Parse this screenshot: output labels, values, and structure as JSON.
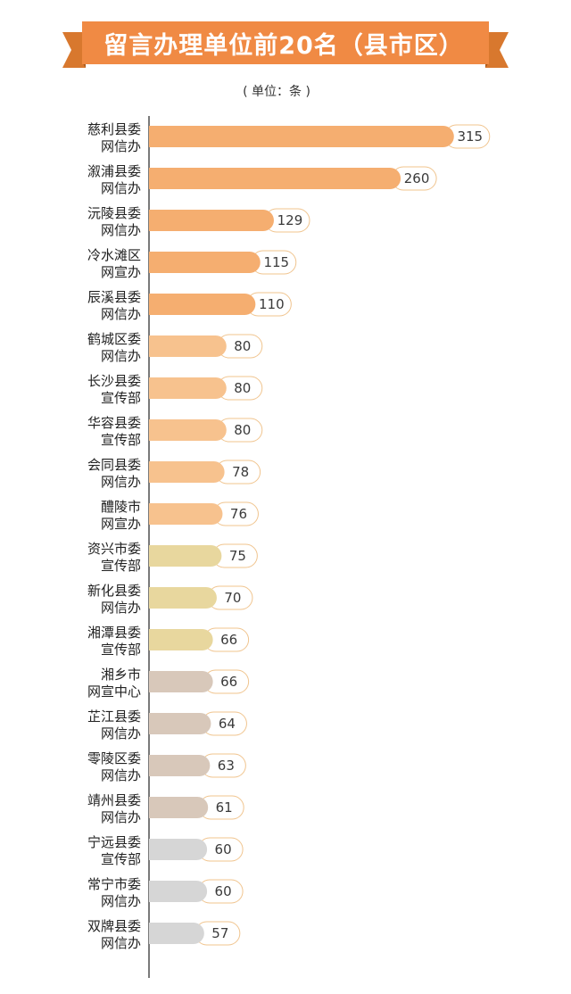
{
  "header": {
    "title": "留言办理单位前20名（县市区）",
    "unit": "( 单位：条 )"
  },
  "colors": {
    "banner": "#f08a44",
    "banner_ribbon": "#d8782e",
    "banner_ribbon_dark": "#a85a1e",
    "bar_palette": [
      "#f5ae70",
      "#f7c28e",
      "#e8d79e",
      "#d8c8ba",
      "#d6d6d6"
    ],
    "axis": "#333333",
    "label_outline": "#f0c48e"
  },
  "chart_data": {
    "type": "bar",
    "orientation": "horizontal",
    "title": "留言办理单位前20名（县市区）",
    "unit": "条",
    "categories": [
      [
        "慈利县委",
        "网信办"
      ],
      [
        "溆浦县委",
        "网信办"
      ],
      [
        "沅陵县委",
        "网信办"
      ],
      [
        "冷水滩区",
        "网宣办"
      ],
      [
        "辰溪县委",
        "网信办"
      ],
      [
        "鹤城区委",
        "网信办"
      ],
      [
        "长沙县委",
        "宣传部"
      ],
      [
        "华容县委",
        "宣传部"
      ],
      [
        "会同县委",
        "网信办"
      ],
      [
        "醴陵市",
        "网宣办"
      ],
      [
        "资兴市委",
        "宣传部"
      ],
      [
        "新化县委",
        "网信办"
      ],
      [
        "湘潭县委",
        "宣传部"
      ],
      [
        "湘乡市",
        "网宣中心"
      ],
      [
        "芷江县委",
        "网信办"
      ],
      [
        "零陵区委",
        "网信办"
      ],
      [
        "靖州县委",
        "网信办"
      ],
      [
        "宁远县委",
        "宣传部"
      ],
      [
        "常宁市委",
        "网信办"
      ],
      [
        "双牌县委",
        "网信办"
      ]
    ],
    "values": [
      315,
      260,
      129,
      115,
      110,
      80,
      80,
      80,
      78,
      76,
      75,
      70,
      66,
      66,
      64,
      63,
      61,
      60,
      60,
      57
    ],
    "color_groups": [
      0,
      0,
      0,
      0,
      0,
      1,
      1,
      1,
      1,
      1,
      2,
      2,
      2,
      3,
      3,
      3,
      3,
      4,
      4,
      4
    ],
    "grid": false,
    "legend": "none"
  }
}
